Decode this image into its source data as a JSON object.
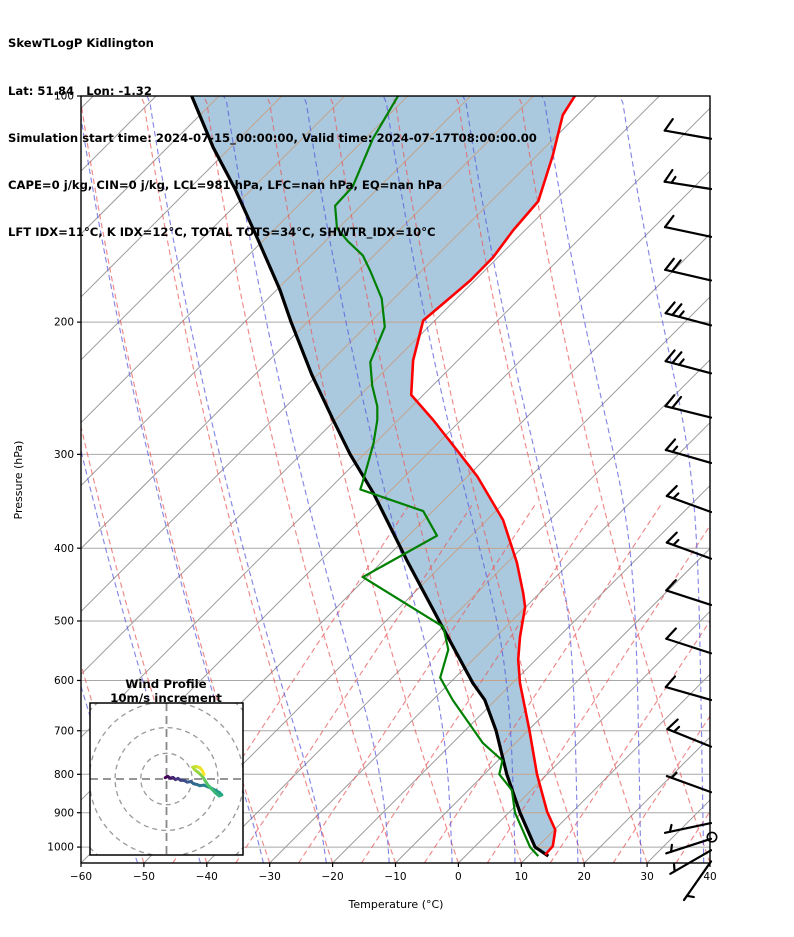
{
  "header": {
    "line1": "SkewTLogP Kidlington",
    "line2": "Lat: 51.84   Lon: -1.32",
    "line3": "Simulation start time: 2024-07-15_00:00:00, Valid time: 2024-07-17T08:00:00.00",
    "line4": "CAPE=0 j/kg, CIN=0 j/kg, LCL=981 hPa, LFC=nan hPa, EQ=nan hPa",
    "line5": "LFT IDX=11°C, K IDX=12°C, TOTAL TOTS=34°C, SHWTR_IDX=10°C"
  },
  "axes": {
    "pressure_label": "Pressure (hPa)",
    "temperature_label": "Temperature (°C)",
    "pressure_ticks": [
      100,
      200,
      300,
      400,
      500,
      600,
      700,
      800,
      900,
      1000
    ],
    "pressure_range": [
      100,
      1050
    ],
    "temp_ticks": [
      -60,
      -50,
      -40,
      -30,
      -20,
      -10,
      0,
      10,
      20,
      30,
      40
    ],
    "temp_range": [
      -60,
      40
    ]
  },
  "chart_data": {
    "type": "skewt_logp",
    "note": "Profile x-values are positions on the skewed temperature axis (value read straight down to the x-axis, °C). Pressure in hPa, log scale.",
    "temperature_profile": [
      [
        100,
        18.5
      ],
      [
        106,
        16.6
      ],
      [
        120,
        15.0
      ],
      [
        138,
        12.7
      ],
      [
        151,
        8.7
      ],
      [
        164,
        5.5
      ],
      [
        176,
        1.9
      ],
      [
        187,
        -1.8
      ],
      [
        199,
        -5.6
      ],
      [
        225,
        -7.2
      ],
      [
        250,
        -7.5
      ],
      [
        270,
        -4.0
      ],
      [
        300,
        0.3
      ],
      [
        321,
        3.0
      ],
      [
        367,
        7.1
      ],
      [
        418,
        9.3
      ],
      [
        459,
        10.3
      ],
      [
        479,
        10.6
      ],
      [
        525,
        9.8
      ],
      [
        563,
        9.5
      ],
      [
        605,
        9.8
      ],
      [
        700,
        11.3
      ],
      [
        800,
        12.5
      ],
      [
        897,
        14.1
      ],
      [
        949,
        15.4
      ],
      [
        997,
        15.0
      ],
      [
        1024,
        13.8
      ]
    ],
    "dewpoint_profile": [
      [
        100,
        -9.6
      ],
      [
        114,
        -13.6
      ],
      [
        132,
        -16.8
      ],
      [
        140,
        -19.6
      ],
      [
        150,
        -19.3
      ],
      [
        156,
        -17.6
      ],
      [
        163,
        -15.2
      ],
      [
        171,
        -14.0
      ],
      [
        186,
        -12.2
      ],
      [
        203,
        -11.7
      ],
      [
        226,
        -14.0
      ],
      [
        243,
        -13.7
      ],
      [
        259,
        -12.9
      ],
      [
        270,
        -12.9
      ],
      [
        290,
        -13.5
      ],
      [
        309,
        -14.4
      ],
      [
        328,
        -15.3
      ],
      [
        334,
        -15.6
      ],
      [
        357,
        -5.6
      ],
      [
        385,
        -3.4
      ],
      [
        437,
        -15.2
      ],
      [
        509,
        -2.4
      ],
      [
        546,
        -1.6
      ],
      [
        595,
        -2.9
      ],
      [
        637,
        -0.9
      ],
      [
        727,
        3.9
      ],
      [
        767,
        7.0
      ],
      [
        800,
        6.5
      ],
      [
        840,
        8.5
      ],
      [
        900,
        9.0
      ],
      [
        1000,
        11.4
      ],
      [
        1028,
        12.7
      ]
    ],
    "parcel_boundary_profile": [
      [
        100,
        -42.4
      ],
      [
        117,
        -39.0
      ],
      [
        133,
        -35.5
      ],
      [
        155,
        -31.9
      ],
      [
        181,
        -28.4
      ],
      [
        200,
        -26.6
      ],
      [
        235,
        -23.3
      ],
      [
        270,
        -19.9
      ],
      [
        300,
        -17.2
      ],
      [
        338,
        -13.5
      ],
      [
        415,
        -8.2
      ],
      [
        503,
        -2.9
      ],
      [
        605,
        2.3
      ],
      [
        637,
        4.2
      ],
      [
        700,
        6.0
      ],
      [
        800,
        7.7
      ],
      [
        900,
        9.8
      ],
      [
        1000,
        12.2
      ],
      [
        1028,
        14.3
      ]
    ],
    "shaded_region": "area between parcel boundary (black) and temperature (red) curves",
    "wind_barbs": {
      "note": "p hPa, speed m/s, angle deg of staff above horizontal-left, side = feather side",
      "barbs": [
        [
          114,
          10,
          10,
          1
        ],
        [
          133,
          15,
          9,
          1
        ],
        [
          154,
          10,
          12,
          1
        ],
        [
          176,
          20,
          13,
          1
        ],
        [
          202,
          25,
          15,
          1
        ],
        [
          234,
          25,
          15,
          1
        ],
        [
          268,
          20,
          14,
          1
        ],
        [
          308,
          15,
          16,
          1
        ],
        [
          358,
          15,
          20,
          1
        ],
        [
          413,
          15,
          20,
          1
        ],
        [
          476,
          10,
          18,
          1
        ],
        [
          552,
          10,
          18,
          1
        ],
        [
          637,
          10,
          16,
          1
        ],
        [
          735,
          15,
          22,
          1
        ],
        [
          845,
          5,
          20,
          1
        ],
        [
          929,
          5,
          -12,
          1
        ],
        [
          975,
          5,
          -18,
          1
        ],
        [
          1010,
          5,
          -30,
          1
        ],
        [
          1045,
          5,
          -55,
          -1
        ]
      ],
      "calm_circle_p": 970
    },
    "hodograph": {
      "title_line1": "Wind Profile",
      "title_line2": "10m/s increment",
      "ring_increment_ms": 10,
      "rings_ms": [
        10,
        20,
        30,
        40
      ],
      "trail_uv_ms": [
        [
          -0.5,
          0.5
        ],
        [
          0.5,
          1.0
        ],
        [
          1.5,
          0.3
        ],
        [
          2.5,
          0.6
        ],
        [
          3.5,
          -0.2
        ],
        [
          4.5,
          0.2
        ],
        [
          5.5,
          -0.5
        ],
        [
          7.0,
          -0.6
        ],
        [
          8.0,
          -1.2
        ],
        [
          9.5,
          -1.0
        ],
        [
          10.5,
          -1.8
        ],
        [
          12.0,
          -2.2
        ],
        [
          13.0,
          -2.6
        ],
        [
          14.5,
          -2.4
        ],
        [
          16.0,
          -3.0
        ],
        [
          17.5,
          -3.6
        ],
        [
          19.0,
          -4.4
        ],
        [
          20.5,
          -5.2
        ],
        [
          21.5,
          -6.2
        ],
        [
          20.5,
          -6.6
        ],
        [
          19.0,
          -5.4
        ],
        [
          17.5,
          -3.8
        ],
        [
          16.0,
          -2.2
        ],
        [
          15.0,
          -0.6
        ],
        [
          14.0,
          1.0
        ],
        [
          12.5,
          2.4
        ],
        [
          11.0,
          3.6
        ],
        [
          10.2,
          4.6
        ],
        [
          11.5,
          4.9
        ],
        [
          13.0,
          4.4
        ],
        [
          14.0,
          3.2
        ],
        [
          14.6,
          1.8
        ]
      ]
    },
    "grid_families": {
      "isotherms": {
        "start": -180,
        "end": 40,
        "step": 10
      },
      "dry_adiabats": {
        "start": -250,
        "end": 40,
        "step": 10
      },
      "moist_adiabats": {
        "start": -251,
        "end": 39,
        "step": 10
      },
      "mixing_lines": {
        "start": -45.4,
        "end": 34.6,
        "step": 10,
        "top_pressure": 350
      }
    },
    "colors": {
      "temperature": "#ff0000",
      "dewpoint": "#008000",
      "parcel": "#000000",
      "fill": "#aac9de",
      "isotherm": "#9b9b9b",
      "isotherm_in_fill": "#c3a38c",
      "pressure_grid": "#a8a8a8",
      "pressure_grid_in_fill": "#c3a38c",
      "dry_adiabat": "#e85c5c",
      "moist_adiabat": "#5858dd",
      "mixing_line": "#e85c5c",
      "barb": "#000000",
      "viridis": [
        "#440154",
        "#46327e",
        "#365c8d",
        "#277f8e",
        "#1fa187",
        "#4ac16d",
        "#a0da39",
        "#fde725"
      ]
    }
  }
}
